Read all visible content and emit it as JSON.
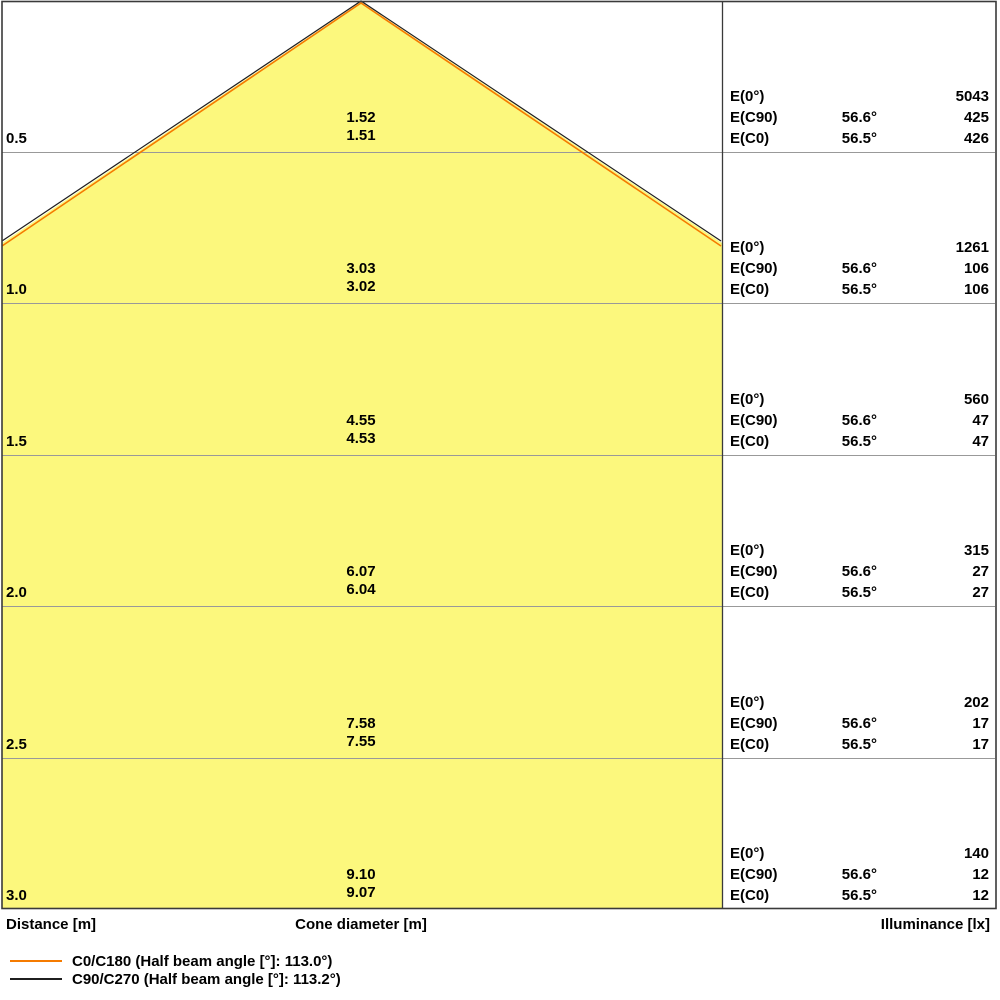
{
  "chart_data": {
    "type": "area",
    "subtype": "light-cone-photometric-diagram",
    "cone_fill_color": "#FCF87D",
    "gridline_color": "#999999",
    "border_color": "#3A3A3A",
    "axes": {
      "distance_label": "Distance [m]",
      "cone_diameter_label": "Cone diameter [m]",
      "illuminance_label": "Illuminance [lx]"
    },
    "rows": [
      {
        "distance": "0.5",
        "cone_c90": "1.52",
        "cone_c0": "1.51",
        "e0_label": "E(0°)",
        "e0": "5043",
        "ec90_label": "E(C90)",
        "ec90_angle": "56.6°",
        "ec90": "425",
        "ec0_label": "E(C0)",
        "ec0_angle": "56.5°",
        "ec0": "426"
      },
      {
        "distance": "1.0",
        "cone_c90": "3.03",
        "cone_c0": "3.02",
        "e0_label": "E(0°)",
        "e0": "1261",
        "ec90_label": "E(C90)",
        "ec90_angle": "56.6°",
        "ec90": "106",
        "ec0_label": "E(C0)",
        "ec0_angle": "56.5°",
        "ec0": "106"
      },
      {
        "distance": "1.5",
        "cone_c90": "4.55",
        "cone_c0": "4.53",
        "e0_label": "E(0°)",
        "e0": "560",
        "ec90_label": "E(C90)",
        "ec90_angle": "56.6°",
        "ec90": "47",
        "ec0_label": "E(C0)",
        "ec0_angle": "56.5°",
        "ec0": "47"
      },
      {
        "distance": "2.0",
        "cone_c90": "6.07",
        "cone_c0": "6.04",
        "e0_label": "E(0°)",
        "e0": "315",
        "ec90_label": "E(C90)",
        "ec90_angle": "56.6°",
        "ec90": "27",
        "ec0_label": "E(C0)",
        "ec0_angle": "56.5°",
        "ec0": "27"
      },
      {
        "distance": "2.5",
        "cone_c90": "7.58",
        "cone_c0": "7.55",
        "e0_label": "E(0°)",
        "e0": "202",
        "ec90_label": "E(C90)",
        "ec90_angle": "56.6°",
        "ec90": "17",
        "ec0_label": "E(C0)",
        "ec0_angle": "56.5°",
        "ec0": "17"
      },
      {
        "distance": "3.0",
        "cone_c90": "9.10",
        "cone_c0": "9.07",
        "e0_label": "E(0°)",
        "e0": "140",
        "ec90_label": "E(C90)",
        "ec90_angle": "56.6°",
        "ec90": "12",
        "ec0_label": "E(C0)",
        "ec0_angle": "56.5°",
        "ec0": "12"
      }
    ],
    "legend": [
      {
        "color": "#F57B00",
        "label": "C0/C180 (Half beam angle [°]: 113.0°)"
      },
      {
        "color": "#1F1F1F",
        "label": "C90/C270 (Half beam angle [°]: 113.2°)"
      }
    ]
  }
}
